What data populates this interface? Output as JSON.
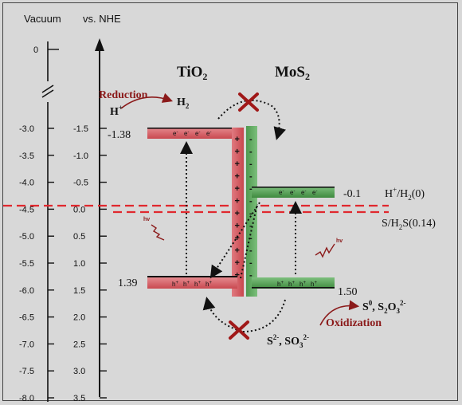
{
  "axes": {
    "vacuum_label": "Vacuum",
    "nhe_label": "vs. NHE",
    "vacuum_top": "0",
    "vacuum_ticks": [
      "-3.0",
      "-3.5",
      "-4.0",
      "-4.5",
      "-5.0",
      "-5.5",
      "-6.0",
      "-6.5",
      "-7.0",
      "-7.5",
      "-8.0"
    ],
    "nhe_ticks": [
      "-1.5",
      "-1.0",
      "-0.5",
      "0.0",
      "0.5",
      "1.0",
      "1.5",
      "2.0",
      "2.5",
      "3.0",
      "3.5"
    ]
  },
  "materials": {
    "tio2": {
      "name": "TiO",
      "sub": "2",
      "cb_value": "-1.38",
      "vb_value": "1.39"
    },
    "mos2": {
      "name": "MoS",
      "sub": "2",
      "cb_value": "-0.1",
      "vb_value": "1.50"
    }
  },
  "carriers": {
    "electron": "e",
    "electron_sup": "-",
    "hole": "h",
    "hole_sup": "+"
  },
  "interface": {
    "plus": "+",
    "minus": "-"
  },
  "reduction": {
    "label": "Reduction",
    "reactant": "H",
    "reactant_sup": "+",
    "product": "H",
    "product_sub": "2"
  },
  "oxidation": {
    "label": "Oxidization",
    "reactant_a": "S",
    "reactant_a_sup": "2-",
    "reactant_b": ", SO",
    "reactant_b_sub": "3",
    "reactant_b_sup": "2-",
    "product_a": "S",
    "product_a_sup": "0",
    "product_b": ", S",
    "product_b_sub": "2",
    "product_b_mid": "O",
    "product_b_sub2": "3",
    "product_b_sup": "2-"
  },
  "potentials": {
    "h2_main": "H",
    "h2_sup": "+",
    "h2_rest": "/H",
    "h2_sub": "2",
    "h2_value": "(0)",
    "h2s_main": "S/H",
    "h2s_sub": "2",
    "h2s_rest": "S",
    "h2s_value": "(0.14)"
  },
  "light": {
    "hv": "hv"
  },
  "colors": {
    "tio2_band": "#d9656b",
    "mos2_band": "#5aa05a",
    "dashed_red": "#e0282e",
    "cross": "#a01818"
  }
}
